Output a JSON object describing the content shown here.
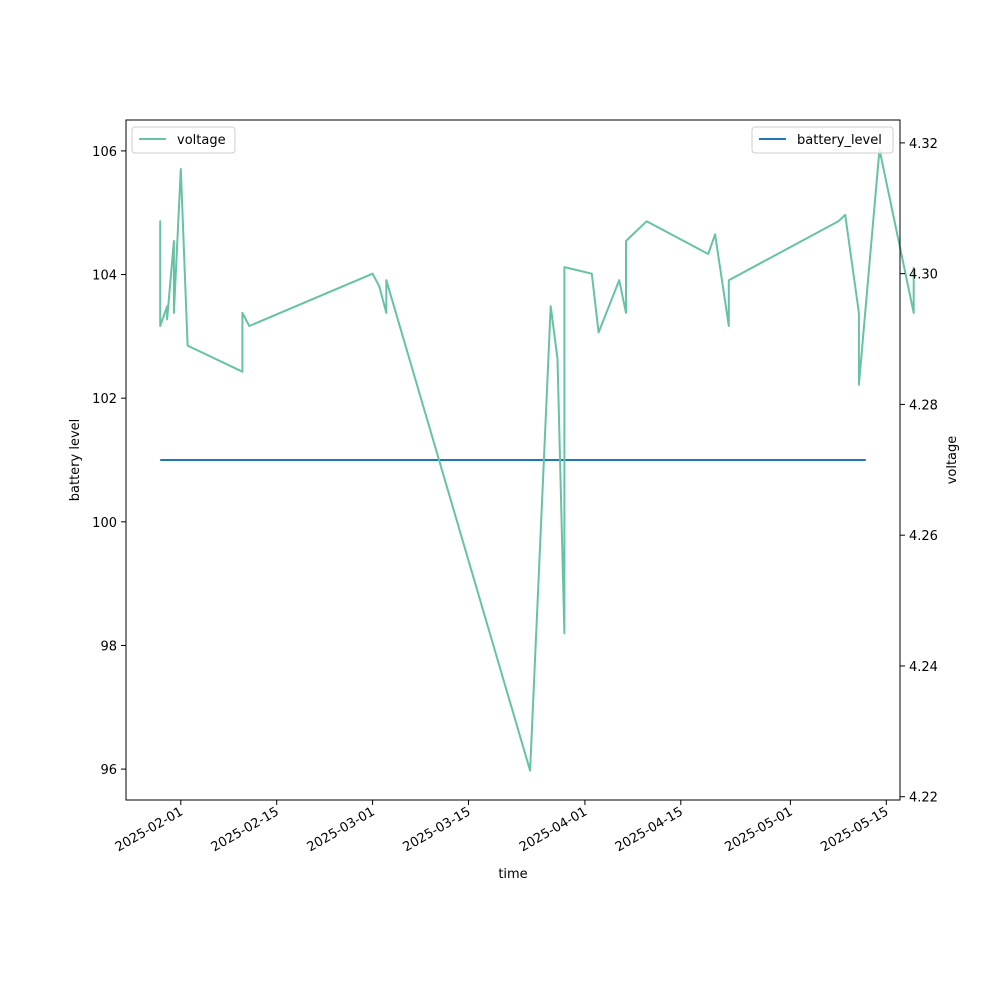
{
  "chart_data": {
    "type": "line",
    "xlabel": "time",
    "ylabel_left": "battery level",
    "ylabel_right": "voltage",
    "xlim": [
      "2025-01-24",
      "2025-05-17"
    ],
    "ylim_left": [
      95.5,
      106.5
    ],
    "ylim_right": [
      4.2195,
      4.3235
    ],
    "x_ticks": [
      "2025-02-01",
      "2025-02-15",
      "2025-03-01",
      "2025-03-15",
      "2025-04-01",
      "2025-04-15",
      "2025-05-01",
      "2025-05-15"
    ],
    "y_ticks_left": [
      96,
      98,
      100,
      102,
      104,
      106
    ],
    "y_ticks_right": [
      "4.22",
      "4.24",
      "4.26",
      "4.28",
      "4.30",
      "4.32"
    ],
    "legend_left": {
      "label": "voltage",
      "placement": "upper left"
    },
    "legend_right": {
      "label": "battery_level",
      "placement": "upper right"
    },
    "series": [
      {
        "name": "battery_level",
        "axis": "left",
        "color": "#1f77b4",
        "x": [
          "2025-01-29",
          "2025-05-12"
        ],
        "values": [
          101,
          101
        ]
      },
      {
        "name": "voltage",
        "axis": "right",
        "color": "#66c2a5",
        "x": [
          "2025-01-29",
          "2025-01-29",
          "2025-01-29",
          "2025-01-29",
          "2025-01-30",
          "2025-01-30",
          "2025-01-31",
          "2025-01-31",
          "2025-02-01",
          "2025-02-02",
          "2025-02-10",
          "2025-02-10",
          "2025-02-11",
          "2025-03-01",
          "2025-03-02",
          "2025-03-03",
          "2025-03-03",
          "2025-03-24",
          "2025-03-27",
          "2025-03-28",
          "2025-03-29",
          "2025-03-29",
          "2025-04-02",
          "2025-04-03",
          "2025-04-06",
          "2025-04-07",
          "2025-04-07",
          "2025-04-10",
          "2025-04-19",
          "2025-04-20",
          "2025-04-22",
          "2025-04-22",
          "2025-05-08",
          "2025-05-09",
          "2025-05-11",
          "2025-05-11",
          "2025-05-13",
          "2025-05-14",
          "2025-05-19",
          "2025-05-19"
        ],
        "values": [
          4.303,
          4.308,
          4.297,
          4.292,
          4.295,
          4.293,
          4.305,
          4.294,
          4.316,
          4.289,
          4.285,
          4.294,
          4.292,
          4.3,
          4.298,
          4.294,
          4.299,
          4.224,
          4.295,
          4.287,
          4.245,
          4.301,
          4.3,
          4.291,
          4.299,
          4.294,
          4.305,
          4.308,
          4.303,
          4.306,
          4.292,
          4.299,
          4.308,
          4.309,
          4.294,
          4.283,
          4.307,
          4.319,
          4.294,
          4.301
        ]
      }
    ]
  }
}
